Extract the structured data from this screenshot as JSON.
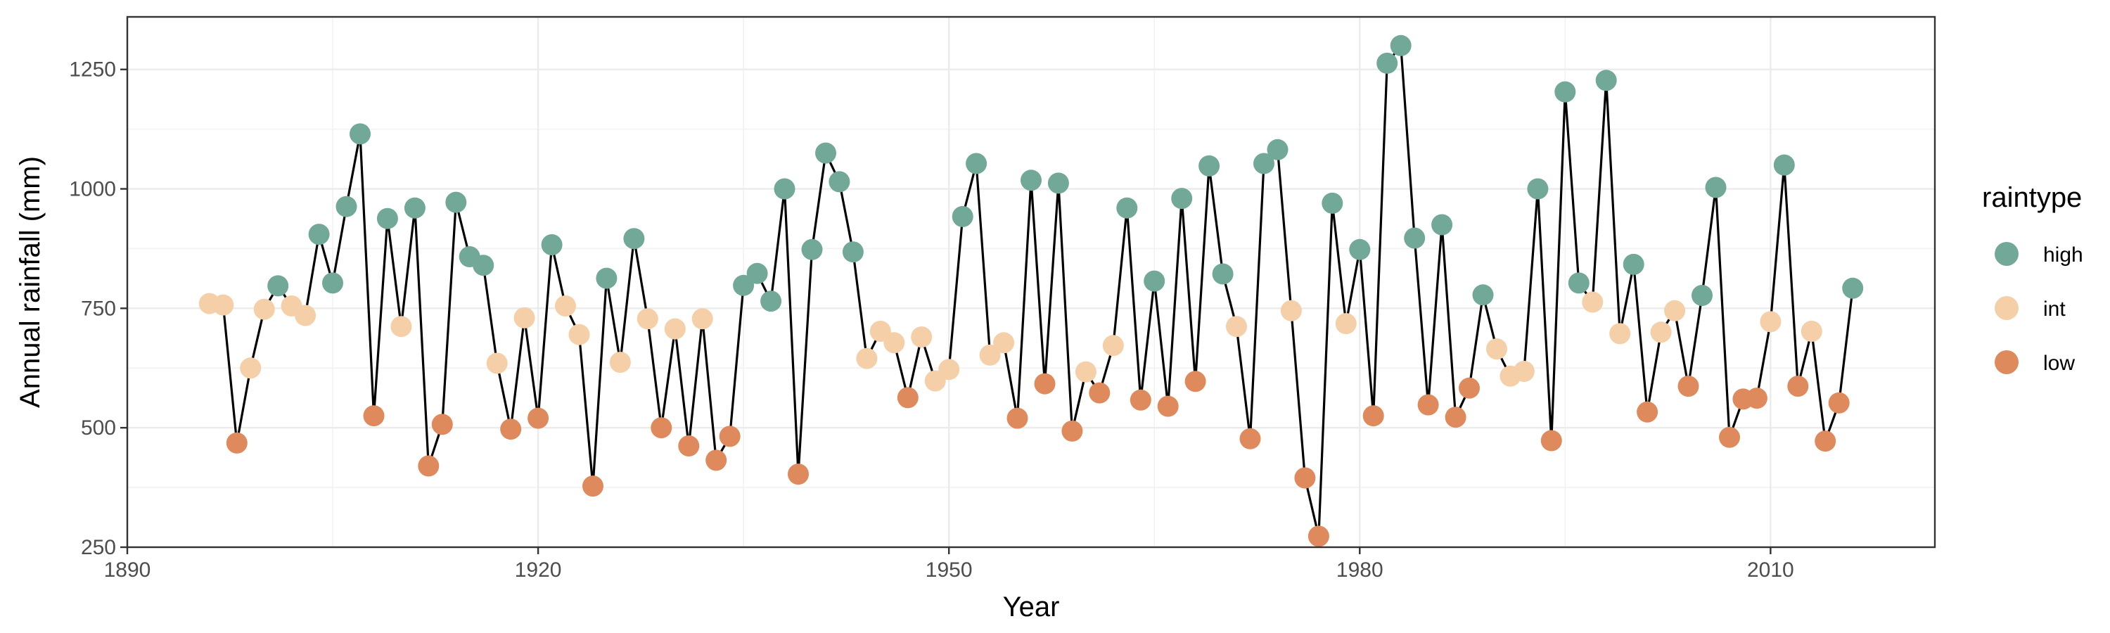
{
  "chart_data": {
    "type": "scatter",
    "title": "",
    "xlabel": "Year",
    "ylabel": "Annual rainfall (mm)",
    "xlim": [
      1890,
      2022
    ],
    "ylim": [
      250,
      1360
    ],
    "x_ticks": [
      1890,
      1920,
      1950,
      1980,
      2010
    ],
    "y_ticks": [
      250,
      500,
      750,
      1000,
      1250
    ],
    "x_tick_labels": [
      "1890",
      "1920",
      "1950",
      "1980",
      "2010"
    ],
    "y_tick_labels": [
      "250",
      "500",
      "750",
      "1000",
      "1250"
    ],
    "grid": true,
    "line_connects_points": true,
    "line_color": "#000000",
    "legend": {
      "title": "raintype",
      "placement": "right",
      "entries": [
        {
          "name": "high",
          "color": "#72a897"
        },
        {
          "name": "int",
          "color": "#f5cfa7"
        },
        {
          "name": "low",
          "color": "#de8a5d"
        }
      ]
    },
    "points": [
      {
        "x": 1896,
        "y": 760,
        "type": "int"
      },
      {
        "x": 1897,
        "y": 757,
        "type": "int"
      },
      {
        "x": 1898,
        "y": 468,
        "type": "low"
      },
      {
        "x": 1899,
        "y": 625,
        "type": "int"
      },
      {
        "x": 1900,
        "y": 748,
        "type": "int"
      },
      {
        "x": 1901,
        "y": 797,
        "type": "high"
      },
      {
        "x": 1902,
        "y": 755,
        "type": "int"
      },
      {
        "x": 1903,
        "y": 735,
        "type": "int"
      },
      {
        "x": 1904,
        "y": 905,
        "type": "high"
      },
      {
        "x": 1905,
        "y": 803,
        "type": "high"
      },
      {
        "x": 1906,
        "y": 963,
        "type": "high"
      },
      {
        "x": 1907,
        "y": 1115,
        "type": "high"
      },
      {
        "x": 1908,
        "y": 525,
        "type": "low"
      },
      {
        "x": 1909,
        "y": 938,
        "type": "high"
      },
      {
        "x": 1910,
        "y": 712,
        "type": "int"
      },
      {
        "x": 1911,
        "y": 960,
        "type": "high"
      },
      {
        "x": 1912,
        "y": 420,
        "type": "low"
      },
      {
        "x": 1913,
        "y": 507,
        "type": "low"
      },
      {
        "x": 1914,
        "y": 972,
        "type": "high"
      },
      {
        "x": 1915,
        "y": 858,
        "type": "high"
      },
      {
        "x": 1916,
        "y": 840,
        "type": "high"
      },
      {
        "x": 1917,
        "y": 635,
        "type": "int"
      },
      {
        "x": 1918,
        "y": 497,
        "type": "low"
      },
      {
        "x": 1919,
        "y": 730,
        "type": "int"
      },
      {
        "x": 1920,
        "y": 520,
        "type": "low"
      },
      {
        "x": 1921,
        "y": 883,
        "type": "high"
      },
      {
        "x": 1922,
        "y": 755,
        "type": "int"
      },
      {
        "x": 1923,
        "y": 695,
        "type": "int"
      },
      {
        "x": 1924,
        "y": 378,
        "type": "low"
      },
      {
        "x": 1925,
        "y": 813,
        "type": "high"
      },
      {
        "x": 1926,
        "y": 637,
        "type": "int"
      },
      {
        "x": 1927,
        "y": 896,
        "type": "high"
      },
      {
        "x": 1928,
        "y": 728,
        "type": "int"
      },
      {
        "x": 1929,
        "y": 500,
        "type": "low"
      },
      {
        "x": 1930,
        "y": 707,
        "type": "int"
      },
      {
        "x": 1931,
        "y": 462,
        "type": "low"
      },
      {
        "x": 1932,
        "y": 728,
        "type": "int"
      },
      {
        "x": 1933,
        "y": 432,
        "type": "low"
      },
      {
        "x": 1934,
        "y": 482,
        "type": "low"
      },
      {
        "x": 1935,
        "y": 798,
        "type": "high"
      },
      {
        "x": 1936,
        "y": 823,
        "type": "high"
      },
      {
        "x": 1937,
        "y": 765,
        "type": "high"
      },
      {
        "x": 1938,
        "y": 1000,
        "type": "high"
      },
      {
        "x": 1939,
        "y": 403,
        "type": "low"
      },
      {
        "x": 1940,
        "y": 873,
        "type": "high"
      },
      {
        "x": 1941,
        "y": 1075,
        "type": "high"
      },
      {
        "x": 1942,
        "y": 1015,
        "type": "high"
      },
      {
        "x": 1943,
        "y": 868,
        "type": "high"
      },
      {
        "x": 1944,
        "y": 645,
        "type": "int"
      },
      {
        "x": 1945,
        "y": 702,
        "type": "int"
      },
      {
        "x": 1946,
        "y": 678,
        "type": "int"
      },
      {
        "x": 1947,
        "y": 563,
        "type": "low"
      },
      {
        "x": 1948,
        "y": 690,
        "type": "int"
      },
      {
        "x": 1949,
        "y": 598,
        "type": "int"
      },
      {
        "x": 1950,
        "y": 622,
        "type": "int"
      },
      {
        "x": 1951,
        "y": 942,
        "type": "high"
      },
      {
        "x": 1952,
        "y": 1053,
        "type": "high"
      },
      {
        "x": 1953,
        "y": 652,
        "type": "int"
      },
      {
        "x": 1954,
        "y": 678,
        "type": "int"
      },
      {
        "x": 1955,
        "y": 520,
        "type": "low"
      },
      {
        "x": 1956,
        "y": 1018,
        "type": "high"
      },
      {
        "x": 1957,
        "y": 592,
        "type": "low"
      },
      {
        "x": 1958,
        "y": 1012,
        "type": "high"
      },
      {
        "x": 1959,
        "y": 493,
        "type": "low"
      },
      {
        "x": 1960,
        "y": 617,
        "type": "int"
      },
      {
        "x": 1961,
        "y": 573,
        "type": "low"
      },
      {
        "x": 1962,
        "y": 672,
        "type": "int"
      },
      {
        "x": 1963,
        "y": 960,
        "type": "high"
      },
      {
        "x": 1964,
        "y": 558,
        "type": "low"
      },
      {
        "x": 1965,
        "y": 807,
        "type": "high"
      },
      {
        "x": 1966,
        "y": 545,
        "type": "low"
      },
      {
        "x": 1967,
        "y": 980,
        "type": "high"
      },
      {
        "x": 1968,
        "y": 597,
        "type": "low"
      },
      {
        "x": 1969,
        "y": 1048,
        "type": "high"
      },
      {
        "x": 1970,
        "y": 822,
        "type": "high"
      },
      {
        "x": 1971,
        "y": 712,
        "type": "int"
      },
      {
        "x": 1972,
        "y": 477,
        "type": "low"
      },
      {
        "x": 1973,
        "y": 1053,
        "type": "high"
      },
      {
        "x": 1974,
        "y": 1082,
        "type": "high"
      },
      {
        "x": 1975,
        "y": 745,
        "type": "int"
      },
      {
        "x": 1976,
        "y": 395,
        "type": "low"
      },
      {
        "x": 1977,
        "y": 273,
        "type": "low"
      },
      {
        "x": 1978,
        "y": 970,
        "type": "high"
      },
      {
        "x": 1979,
        "y": 718,
        "type": "int"
      },
      {
        "x": 1980,
        "y": 873,
        "type": "high"
      },
      {
        "x": 1981,
        "y": 525,
        "type": "low"
      },
      {
        "x": 1982,
        "y": 1263,
        "type": "high"
      },
      {
        "x": 1983,
        "y": 1300,
        "type": "high"
      },
      {
        "x": 1984,
        "y": 897,
        "type": "high"
      },
      {
        "x": 1985,
        "y": 548,
        "type": "low"
      },
      {
        "x": 1986,
        "y": 925,
        "type": "high"
      },
      {
        "x": 1987,
        "y": 522,
        "type": "low"
      },
      {
        "x": 1988,
        "y": 583,
        "type": "low"
      },
      {
        "x": 1989,
        "y": 778,
        "type": "high"
      },
      {
        "x": 1990,
        "y": 665,
        "type": "int"
      },
      {
        "x": 1991,
        "y": 608,
        "type": "int"
      },
      {
        "x": 1992,
        "y": 618,
        "type": "int"
      },
      {
        "x": 1993,
        "y": 1000,
        "type": "high"
      },
      {
        "x": 1994,
        "y": 473,
        "type": "low"
      },
      {
        "x": 1995,
        "y": 1203,
        "type": "high"
      },
      {
        "x": 1996,
        "y": 803,
        "type": "high"
      },
      {
        "x": 1997,
        "y": 763,
        "type": "int"
      },
      {
        "x": 1998,
        "y": 1227,
        "type": "high"
      },
      {
        "x": 1999,
        "y": 697,
        "type": "int"
      },
      {
        "x": 2000,
        "y": 842,
        "type": "high"
      },
      {
        "x": 2001,
        "y": 533,
        "type": "low"
      },
      {
        "x": 2002,
        "y": 700,
        "type": "int"
      },
      {
        "x": 2003,
        "y": 745,
        "type": "int"
      },
      {
        "x": 2004,
        "y": 587,
        "type": "low"
      },
      {
        "x": 2005,
        "y": 777,
        "type": "high"
      },
      {
        "x": 2006,
        "y": 1003,
        "type": "high"
      },
      {
        "x": 2007,
        "y": 480,
        "type": "low"
      },
      {
        "x": 2008,
        "y": 560,
        "type": "low"
      },
      {
        "x": 2009,
        "y": 562,
        "type": "low"
      },
      {
        "x": 2010,
        "y": 722,
        "type": "int"
      },
      {
        "x": 2011,
        "y": 1050,
        "type": "high"
      },
      {
        "x": 2012,
        "y": 587,
        "type": "low"
      },
      {
        "x": 2013,
        "y": 702,
        "type": "int"
      },
      {
        "x": 2014,
        "y": 472,
        "type": "low"
      },
      {
        "x": 2015,
        "y": 552,
        "type": "low"
      },
      {
        "x": 2016,
        "y": 792,
        "type": "high"
      }
    ]
  }
}
